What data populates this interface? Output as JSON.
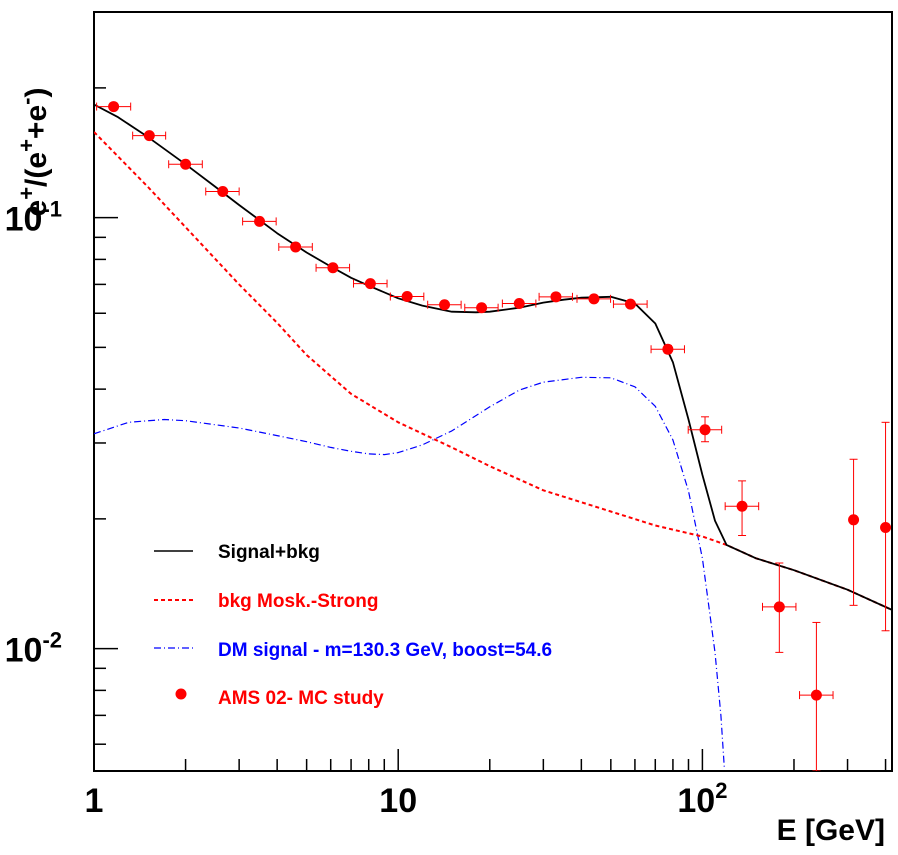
{
  "chart_data": {
    "type": "scatter",
    "x_scale": "log",
    "y_scale": "log",
    "xlim": [
      1,
      420
    ],
    "ylim": [
      0.0052,
      0.3
    ],
    "grid": false,
    "legend_position": "bottom-left",
    "xlabel": "E [GeV]",
    "ylabel": {
      "parts": [
        "e",
        "+",
        "/(e",
        "+",
        "+e",
        "-",
        ")"
      ]
    },
    "x_ticks": [
      {
        "value": 1,
        "label": "1",
        "exp": ""
      },
      {
        "value": 10,
        "label": "10",
        "exp": ""
      },
      {
        "value": 100,
        "label": "10",
        "exp": "2"
      }
    ],
    "y_ticks": [
      {
        "value": 0.1,
        "label": "10",
        "exp": "-1"
      },
      {
        "value": 0.01,
        "label": "10",
        "exp": "-2"
      }
    ],
    "series": [
      {
        "name": "Signal+bkg",
        "kind": "line",
        "style": "solid",
        "color": "#000000",
        "x": [
          1.0,
          1.2,
          1.5,
          2.0,
          2.5,
          3.0,
          4.0,
          5.0,
          6.0,
          7.0,
          8.0,
          10.0,
          12.0,
          15.0,
          18.0,
          20.0,
          25.0,
          30.0,
          35.0,
          40.0,
          50.0,
          60.0,
          70.0,
          80.0,
          90.0,
          100.0,
          110.0,
          120.0,
          150.0,
          200.0,
          300.0,
          420.0
        ],
        "y": [
          0.183,
          0.171,
          0.154,
          0.133,
          0.118,
          0.107,
          0.092,
          0.083,
          0.077,
          0.0725,
          0.0695,
          0.065,
          0.0625,
          0.0605,
          0.0603,
          0.0605,
          0.0618,
          0.0635,
          0.0645,
          0.0652,
          0.0655,
          0.0632,
          0.0568,
          0.0462,
          0.034,
          0.0253,
          0.0198,
          0.0174,
          0.0162,
          0.0152,
          0.0137,
          0.0123
        ]
      },
      {
        "name": "bkg Mosk.-Strong",
        "kind": "line",
        "style": "dashed",
        "color": "#ff0000",
        "x": [
          1.0,
          1.5,
          2.0,
          3.0,
          4.0,
          5.0,
          7.0,
          10.0,
          15.0,
          20.0,
          30.0,
          50.0,
          70.0,
          100.0,
          120.0,
          150.0,
          200.0,
          300.0,
          420.0
        ],
        "y": [
          0.158,
          0.118,
          0.095,
          0.07,
          0.057,
          0.048,
          0.039,
          0.0335,
          0.0293,
          0.0265,
          0.0233,
          0.0208,
          0.0193,
          0.0182,
          0.0174,
          0.0162,
          0.0152,
          0.0137,
          0.0123
        ]
      },
      {
        "name": "DM signal - m=130.3 GeV, boost=54.6",
        "kind": "line",
        "style": "dashdot",
        "color": "#0000ff",
        "x": [
          1.0,
          1.3,
          1.7,
          2.0,
          3.0,
          4.0,
          5.0,
          6.0,
          7.0,
          8.0,
          9.0,
          10.0,
          12.0,
          15.0,
          20.0,
          25.0,
          30.0,
          40.0,
          50.0,
          60.0,
          70.0,
          80.0,
          90.0,
          100.0,
          110.0,
          115.0,
          118.0
        ],
        "y": [
          0.0315,
          0.0335,
          0.034,
          0.0338,
          0.0325,
          0.0312,
          0.0302,
          0.0293,
          0.0287,
          0.0283,
          0.0282,
          0.0285,
          0.0297,
          0.032,
          0.0364,
          0.0398,
          0.0415,
          0.0426,
          0.0425,
          0.0405,
          0.0365,
          0.0305,
          0.0232,
          0.0162,
          0.0098,
          0.007,
          0.0053
        ]
      },
      {
        "name": "AMS 02- MC study",
        "kind": "points",
        "color": "#ff0000",
        "points": [
          {
            "x": 1.16,
            "y": 0.181,
            "xlo": 1.02,
            "xhi": 1.32,
            "ylo": 0.181,
            "yhi": 0.181
          },
          {
            "x": 1.52,
            "y": 0.155,
            "xlo": 1.34,
            "xhi": 1.72,
            "ylo": 0.155,
            "yhi": 0.155
          },
          {
            "x": 2.0,
            "y": 0.133,
            "xlo": 1.76,
            "xhi": 2.27,
            "ylo": 0.133,
            "yhi": 0.133
          },
          {
            "x": 2.65,
            "y": 0.115,
            "xlo": 2.33,
            "xhi": 3.0,
            "ylo": 0.115,
            "yhi": 0.115
          },
          {
            "x": 3.5,
            "y": 0.098,
            "xlo": 3.08,
            "xhi": 3.97,
            "ylo": 0.098,
            "yhi": 0.098
          },
          {
            "x": 4.6,
            "y": 0.0855,
            "xlo": 4.05,
            "xhi": 5.22,
            "ylo": 0.0855,
            "yhi": 0.0855
          },
          {
            "x": 6.1,
            "y": 0.0765,
            "xlo": 5.37,
            "xhi": 6.92,
            "ylo": 0.0765,
            "yhi": 0.0765
          },
          {
            "x": 8.1,
            "y": 0.0703,
            "xlo": 7.13,
            "xhi": 9.19,
            "ylo": 0.0703,
            "yhi": 0.0703
          },
          {
            "x": 10.7,
            "y": 0.0656,
            "xlo": 9.42,
            "xhi": 12.14,
            "ylo": 0.0656,
            "yhi": 0.0656
          },
          {
            "x": 14.2,
            "y": 0.0628,
            "xlo": 12.5,
            "xhi": 16.1,
            "ylo": 0.0628,
            "yhi": 0.0628
          },
          {
            "x": 18.8,
            "y": 0.0618,
            "xlo": 16.55,
            "xhi": 21.3,
            "ylo": 0.0618,
            "yhi": 0.0618
          },
          {
            "x": 25.0,
            "y": 0.0632,
            "xlo": 22.0,
            "xhi": 28.35,
            "ylo": 0.0632,
            "yhi": 0.0632
          },
          {
            "x": 33.0,
            "y": 0.0655,
            "xlo": 29.05,
            "xhi": 37.4,
            "ylo": 0.0655,
            "yhi": 0.0655
          },
          {
            "x": 44.0,
            "y": 0.0648,
            "xlo": 38.7,
            "xhi": 49.9,
            "ylo": 0.0648,
            "yhi": 0.0648
          },
          {
            "x": 58.0,
            "y": 0.063,
            "xlo": 51.0,
            "xhi": 65.8,
            "ylo": 0.063,
            "yhi": 0.063
          },
          {
            "x": 77.0,
            "y": 0.0495,
            "xlo": 67.8,
            "xhi": 87.3,
            "ylo": 0.0485,
            "yhi": 0.0505
          },
          {
            "x": 102.0,
            "y": 0.0322,
            "xlo": 89.8,
            "xhi": 115.7,
            "ylo": 0.0302,
            "yhi": 0.0345
          },
          {
            "x": 135.0,
            "y": 0.0214,
            "xlo": 118.8,
            "xhi": 153.1,
            "ylo": 0.0183,
            "yhi": 0.0245
          },
          {
            "x": 179.0,
            "y": 0.0125,
            "xlo": 157.6,
            "xhi": 203.0,
            "ylo": 0.0098,
            "yhi": 0.0158
          },
          {
            "x": 237.0,
            "y": 0.0078,
            "xlo": 208.6,
            "xhi": 268.8,
            "ylo": 0.0052,
            "yhi": 0.0115
          },
          {
            "x": 314.0,
            "y": 0.0199,
            "xlo": 314.0,
            "xhi": 314.0,
            "ylo": 0.0126,
            "yhi": 0.0275
          },
          {
            "x": 400.0,
            "y": 0.0191,
            "xlo": 400.0,
            "xhi": 400.0,
            "ylo": 0.011,
            "yhi": 0.0335
          }
        ]
      }
    ]
  }
}
